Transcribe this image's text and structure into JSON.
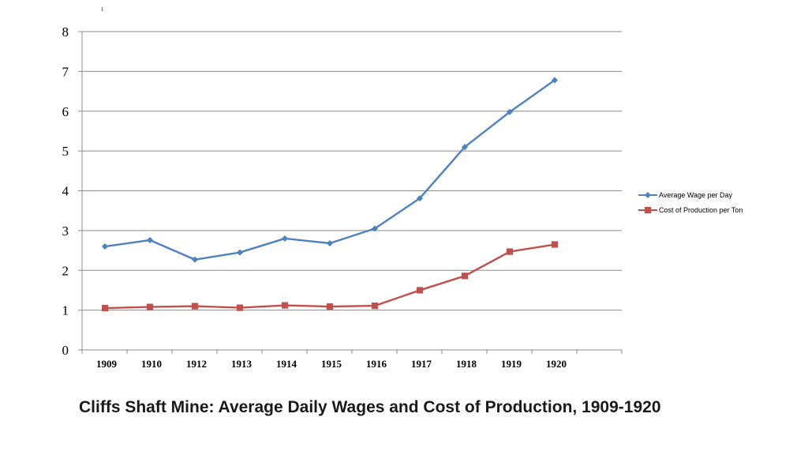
{
  "chart_data": {
    "type": "line",
    "title": "",
    "xlabel": "",
    "ylabel": "",
    "categories": [
      "1909",
      "1910",
      "1912",
      "1913",
      "1914",
      "1915",
      "1916",
      "1917",
      "1918",
      "1919",
      "1920"
    ],
    "ylim": [
      0,
      8
    ],
    "yticks": [
      "0",
      "1",
      "2",
      "3",
      "4",
      "5",
      "6",
      "7",
      "8"
    ],
    "grid": true,
    "legend_position": "right",
    "series": [
      {
        "name": "Average Wage per Day",
        "color": "#4f81bd",
        "marker": "diamond",
        "values": [
          2.6,
          2.76,
          2.27,
          2.45,
          2.8,
          2.68,
          3.05,
          3.81,
          5.1,
          5.98,
          6.78
        ]
      },
      {
        "name": "Cost of Production per Ton",
        "color": "#c0504d",
        "marker": "square",
        "values": [
          1.05,
          1.08,
          1.1,
          1.06,
          1.12,
          1.09,
          1.11,
          1.5,
          1.86,
          2.47,
          2.65
        ]
      }
    ]
  },
  "top_marker": "ı",
  "caption": "Cliffs Shaft Mine: Average Daily Wages and Cost of Production, 1909-1920"
}
